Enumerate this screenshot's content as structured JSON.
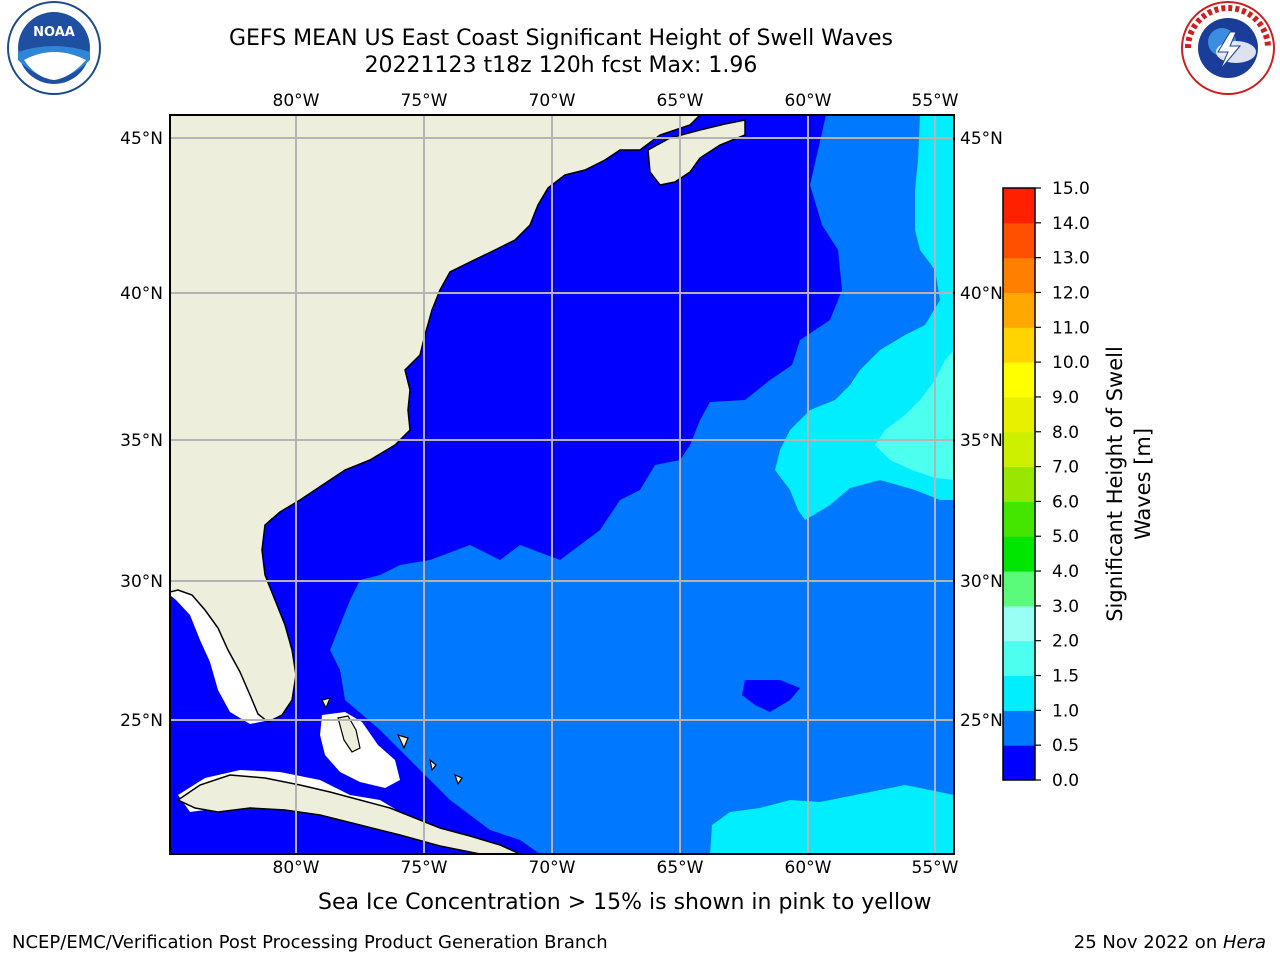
{
  "title": {
    "line1": "GEFS MEAN US East Coast Significant Height of Swell Waves",
    "line2": "20221123 t18z 120h fcst   Max: 1.96"
  },
  "footer": {
    "ice_note": "Sea Ice Concentration > 15% is shown in pink to yellow",
    "credit": "NCEP/EMC/Verification Post Processing Product Generation Branch",
    "date_prefix": "25 Nov 2022 on ",
    "date_host": "Hera"
  },
  "logos": {
    "left": "NOAA",
    "right": "NATIONAL WEATHER SERVICE"
  },
  "map": {
    "lon_ticks": [
      "80°W",
      "75°W",
      "70°W",
      "65°W",
      "60°W",
      "55°W"
    ],
    "lat_ticks": [
      "45°N",
      "40°N",
      "35°N",
      "30°N",
      "25°N"
    ]
  },
  "colorbar": {
    "title_line1": "Significant Height of Swell",
    "title_line2": "Waves [m]",
    "levels": [
      "0.0",
      "0.5",
      "1.0",
      "1.5",
      "2.0",
      "3.0",
      "4.0",
      "5.0",
      "6.0",
      "7.0",
      "8.0",
      "9.0",
      "10.0",
      "11.0",
      "12.0",
      "13.0",
      "14.0",
      "15.0"
    ],
    "colors": [
      "#0000ff",
      "#0078ff",
      "#00eeff",
      "#4cffee",
      "#99fff5",
      "#5afa7a",
      "#00e600",
      "#44e600",
      "#99e600",
      "#ccf000",
      "#e8f000",
      "#ffff00",
      "#ffd400",
      "#ffa800",
      "#ff7f00",
      "#ff5000",
      "#ff2000"
    ]
  },
  "colors": {
    "land": "#eeeedc",
    "grid": "#b4b4b4",
    "swell_0": "#0000ff",
    "swell_05": "#0078ff",
    "swell_1": "#00eeff",
    "swell_15": "#4cffee"
  }
}
